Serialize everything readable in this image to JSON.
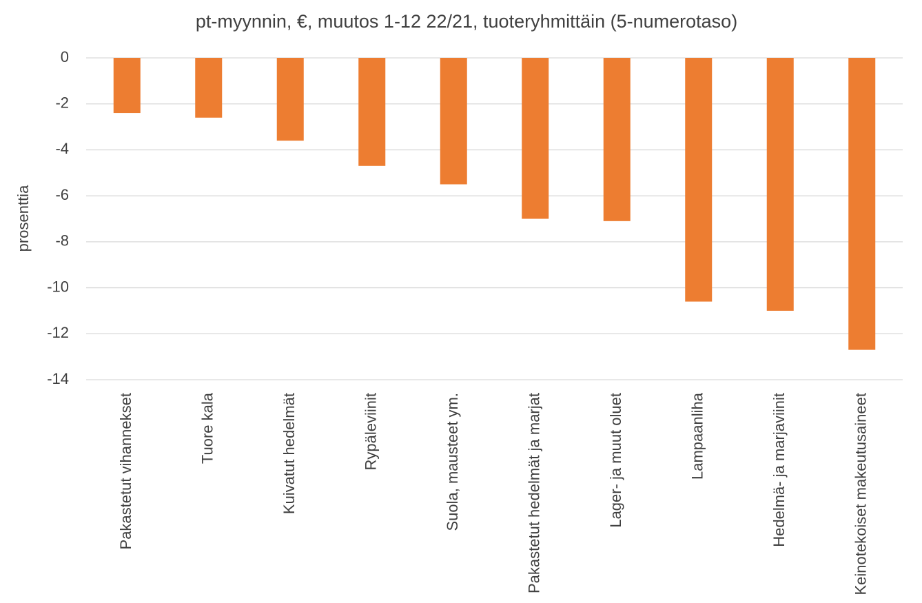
{
  "chart_data": {
    "type": "bar",
    "title": "pt-myynnin, €, muutos 1-12 22/21, tuoteryhmittäin (5-numerotaso)",
    "y_label": "prosenttia",
    "categories": [
      "Pakastetut vihannekset",
      "Tuore kala",
      "Kuivatut hedelmät",
      "Rypäleviinit",
      "Suola, mausteet ym.",
      "Pakastetut hedelmät ja marjat",
      "Lager- ja muut oluet",
      "Lampaanliha",
      "Hedelmä- ja marjaviinit",
      "Keinotekoiset makeutusaineet"
    ],
    "values": [
      -2.4,
      -2.6,
      -3.6,
      -4.7,
      -5.5,
      -7.0,
      -7.1,
      -10.6,
      -11.0,
      -12.7
    ],
    "color": "#ed7d31",
    "ylim": [
      -14,
      0
    ],
    "yticks": [
      -14,
      -12,
      -10,
      -8,
      -6,
      -4,
      -2,
      0
    ],
    "grid": true
  }
}
